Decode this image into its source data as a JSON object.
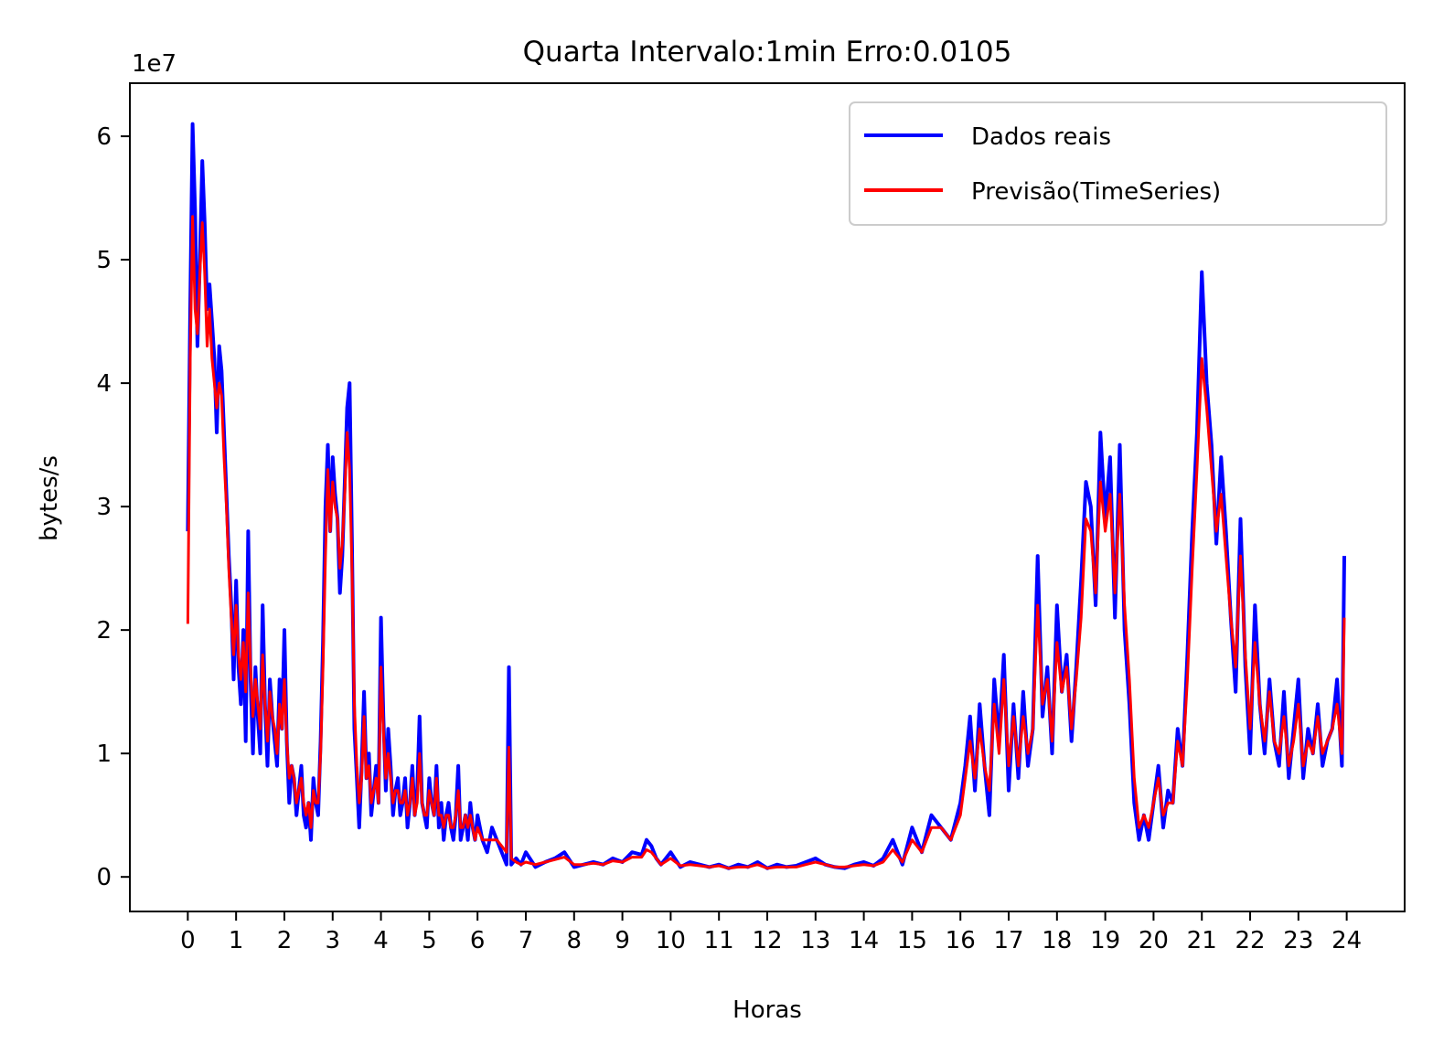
{
  "chart_data": {
    "type": "line",
    "title": "Quarta Intervalo:1min Erro:0.0105",
    "xlabel": "Horas",
    "ylabel": "bytes/s",
    "y_offset_label": "1e7",
    "y_multiplier": 10000000,
    "xlim": [
      -1.2,
      25.2
    ],
    "ylim": [
      -0.28,
      6.43
    ],
    "x_ticks": [
      0,
      1,
      2,
      3,
      4,
      5,
      6,
      7,
      8,
      9,
      10,
      11,
      12,
      13,
      14,
      15,
      16,
      17,
      18,
      19,
      20,
      21,
      22,
      23,
      24
    ],
    "x_tick_labels": [
      "0",
      "1",
      "2",
      "3",
      "4",
      "5",
      "6",
      "7",
      "8",
      "9",
      "10",
      "11",
      "12",
      "13",
      "14",
      "15",
      "16",
      "17",
      "18",
      "19",
      "20",
      "21",
      "22",
      "23",
      "24"
    ],
    "y_ticks": [
      0,
      1,
      2,
      3,
      4,
      5,
      6
    ],
    "y_tick_labels": [
      "0",
      "1",
      "2",
      "3",
      "4",
      "5",
      "6"
    ],
    "grid": false,
    "legend_position": "top-right",
    "series": [
      {
        "name": "Dados reais",
        "color": "#0000ff",
        "x": [
          0,
          0.05,
          0.1,
          0.15,
          0.2,
          0.25,
          0.3,
          0.35,
          0.4,
          0.45,
          0.5,
          0.55,
          0.6,
          0.65,
          0.7,
          0.75,
          0.8,
          0.85,
          0.9,
          0.95,
          1.0,
          1.05,
          1.1,
          1.15,
          1.2,
          1.25,
          1.3,
          1.35,
          1.4,
          1.45,
          1.5,
          1.55,
          1.6,
          1.65,
          1.7,
          1.75,
          1.8,
          1.85,
          1.9,
          1.95,
          2.0,
          2.05,
          2.1,
          2.15,
          2.2,
          2.25,
          2.3,
          2.35,
          2.4,
          2.45,
          2.5,
          2.55,
          2.6,
          2.65,
          2.7,
          2.75,
          2.8,
          2.85,
          2.9,
          2.95,
          3.0,
          3.05,
          3.1,
          3.15,
          3.2,
          3.25,
          3.3,
          3.35,
          3.4,
          3.45,
          3.5,
          3.55,
          3.6,
          3.65,
          3.7,
          3.75,
          3.8,
          3.85,
          3.9,
          3.95,
          4.0,
          4.05,
          4.1,
          4.15,
          4.2,
          4.25,
          4.3,
          4.35,
          4.4,
          4.45,
          4.5,
          4.55,
          4.6,
          4.65,
          4.7,
          4.75,
          4.8,
          4.85,
          4.9,
          4.95,
          5.0,
          5.05,
          5.1,
          5.15,
          5.2,
          5.25,
          5.3,
          5.35,
          5.4,
          5.45,
          5.5,
          5.55,
          5.6,
          5.65,
          5.7,
          5.75,
          5.8,
          5.85,
          5.9,
          5.95,
          6.0,
          6.1,
          6.2,
          6.3,
          6.4,
          6.5,
          6.6,
          6.65,
          6.7,
          6.8,
          6.9,
          7.0,
          7.2,
          7.4,
          7.6,
          7.8,
          8.0,
          8.2,
          8.4,
          8.6,
          8.8,
          9.0,
          9.2,
          9.4,
          9.5,
          9.6,
          9.7,
          9.8,
          10.0,
          10.2,
          10.4,
          10.6,
          10.8,
          11.0,
          11.2,
          11.4,
          11.6,
          11.8,
          12.0,
          12.2,
          12.4,
          12.6,
          12.8,
          13.0,
          13.2,
          13.4,
          13.6,
          13.8,
          14.0,
          14.2,
          14.4,
          14.6,
          14.8,
          15.0,
          15.2,
          15.4,
          15.6,
          15.8,
          16.0,
          16.1,
          16.2,
          16.3,
          16.4,
          16.5,
          16.6,
          16.7,
          16.8,
          16.9,
          17.0,
          17.1,
          17.2,
          17.3,
          17.4,
          17.5,
          17.6,
          17.7,
          17.8,
          17.9,
          18.0,
          18.1,
          18.2,
          18.3,
          18.4,
          18.5,
          18.6,
          18.7,
          18.8,
          18.9,
          19.0,
          19.1,
          19.2,
          19.3,
          19.4,
          19.5,
          19.6,
          19.7,
          19.8,
          19.9,
          20.0,
          20.1,
          20.2,
          20.3,
          20.4,
          20.5,
          20.6,
          20.7,
          20.8,
          20.9,
          21.0,
          21.1,
          21.2,
          21.3,
          21.4,
          21.5,
          21.6,
          21.7,
          21.8,
          21.9,
          22.0,
          22.1,
          22.2,
          22.3,
          22.4,
          22.5,
          22.6,
          22.7,
          22.8,
          22.9,
          23.0,
          23.1,
          23.2,
          23.3,
          23.4,
          23.5,
          23.6,
          23.7,
          23.8,
          23.9,
          23.95
        ],
        "y": [
          2.8,
          4.6,
          6.1,
          5.4,
          4.3,
          5.0,
          5.8,
          5.3,
          4.6,
          4.8,
          4.5,
          4.2,
          3.6,
          4.3,
          4.1,
          3.6,
          3.1,
          2.6,
          2.2,
          1.6,
          2.4,
          1.7,
          1.4,
          2.0,
          1.1,
          2.8,
          1.6,
          1.0,
          1.7,
          1.3,
          1.0,
          2.2,
          1.4,
          0.9,
          1.6,
          1.3,
          1.1,
          0.9,
          1.6,
          1.2,
          2.0,
          1.1,
          0.6,
          0.9,
          0.8,
          0.5,
          0.7,
          0.9,
          0.5,
          0.4,
          0.6,
          0.3,
          0.8,
          0.6,
          0.5,
          1.1,
          1.9,
          3.0,
          3.5,
          2.8,
          3.4,
          3.1,
          2.9,
          2.3,
          2.6,
          3.2,
          3.8,
          4.0,
          2.7,
          1.2,
          0.8,
          0.4,
          0.9,
          1.5,
          0.8,
          1.0,
          0.5,
          0.7,
          0.9,
          0.6,
          2.1,
          1.3,
          0.7,
          1.2,
          0.9,
          0.5,
          0.7,
          0.8,
          0.5,
          0.6,
          0.8,
          0.4,
          0.6,
          0.9,
          0.5,
          0.7,
          1.3,
          0.6,
          0.5,
          0.4,
          0.8,
          0.6,
          0.5,
          0.9,
          0.4,
          0.6,
          0.3,
          0.5,
          0.6,
          0.4,
          0.3,
          0.5,
          0.9,
          0.3,
          0.4,
          0.5,
          0.3,
          0.6,
          0.4,
          0.3,
          0.5,
          0.3,
          0.2,
          0.4,
          0.3,
          0.2,
          0.1,
          1.7,
          0.1,
          0.15,
          0.1,
          0.2,
          0.08,
          0.12,
          0.15,
          0.2,
          0.08,
          0.1,
          0.12,
          0.1,
          0.15,
          0.12,
          0.2,
          0.18,
          0.3,
          0.25,
          0.15,
          0.1,
          0.2,
          0.08,
          0.12,
          0.1,
          0.08,
          0.1,
          0.07,
          0.1,
          0.08,
          0.12,
          0.07,
          0.1,
          0.08,
          0.09,
          0.12,
          0.15,
          0.1,
          0.08,
          0.07,
          0.1,
          0.12,
          0.09,
          0.15,
          0.3,
          0.1,
          0.4,
          0.2,
          0.5,
          0.4,
          0.3,
          0.6,
          0.9,
          1.3,
          0.7,
          1.4,
          0.9,
          0.5,
          1.6,
          1.1,
          1.8,
          0.7,
          1.4,
          0.8,
          1.5,
          0.9,
          1.2,
          2.6,
          1.3,
          1.7,
          1.0,
          2.2,
          1.5,
          1.8,
          1.1,
          1.7,
          2.4,
          3.2,
          3.0,
          2.2,
          3.6,
          2.9,
          3.4,
          2.1,
          3.5,
          2.0,
          1.4,
          0.6,
          0.3,
          0.5,
          0.3,
          0.6,
          0.9,
          0.4,
          0.7,
          0.6,
          1.2,
          0.9,
          1.8,
          2.8,
          3.6,
          4.9,
          4.0,
          3.5,
          2.7,
          3.4,
          2.8,
          2.1,
          1.5,
          2.9,
          1.7,
          1.0,
          2.2,
          1.4,
          1.0,
          1.6,
          1.1,
          0.9,
          1.5,
          0.8,
          1.2,
          1.6,
          0.8,
          1.2,
          1.0,
          1.4,
          0.9,
          1.1,
          1.2,
          1.6,
          0.9,
          2.6
        ]
      },
      {
        "name": "Previsão(TimeSeries)",
        "color": "#ff0000",
        "x": [
          0,
          0.05,
          0.1,
          0.15,
          0.2,
          0.25,
          0.3,
          0.35,
          0.4,
          0.45,
          0.5,
          0.55,
          0.6,
          0.65,
          0.7,
          0.75,
          0.8,
          0.85,
          0.9,
          0.95,
          1.0,
          1.05,
          1.1,
          1.15,
          1.2,
          1.25,
          1.3,
          1.35,
          1.4,
          1.45,
          1.5,
          1.55,
          1.6,
          1.65,
          1.7,
          1.75,
          1.8,
          1.85,
          1.9,
          1.95,
          2.0,
          2.05,
          2.1,
          2.15,
          2.2,
          2.25,
          2.3,
          2.35,
          2.4,
          2.45,
          2.5,
          2.55,
          2.6,
          2.65,
          2.7,
          2.75,
          2.8,
          2.85,
          2.9,
          2.95,
          3.0,
          3.05,
          3.1,
          3.15,
          3.2,
          3.25,
          3.3,
          3.35,
          3.4,
          3.45,
          3.5,
          3.55,
          3.6,
          3.65,
          3.7,
          3.75,
          3.8,
          3.85,
          3.9,
          3.95,
          4.0,
          4.05,
          4.1,
          4.15,
          4.2,
          4.25,
          4.3,
          4.35,
          4.4,
          4.45,
          4.5,
          4.55,
          4.6,
          4.65,
          4.7,
          4.75,
          4.8,
          4.85,
          4.9,
          4.95,
          5.0,
          5.05,
          5.1,
          5.15,
          5.2,
          5.25,
          5.3,
          5.35,
          5.4,
          5.45,
          5.5,
          5.55,
          5.6,
          5.65,
          5.7,
          5.75,
          5.8,
          5.85,
          5.9,
          5.95,
          6.0,
          6.1,
          6.2,
          6.3,
          6.4,
          6.5,
          6.6,
          6.65,
          6.7,
          6.8,
          6.9,
          7.0,
          7.2,
          7.4,
          7.6,
          7.8,
          8.0,
          8.2,
          8.4,
          8.6,
          8.8,
          9.0,
          9.2,
          9.4,
          9.5,
          9.6,
          9.7,
          9.8,
          10.0,
          10.2,
          10.4,
          10.6,
          10.8,
          11.0,
          11.2,
          11.4,
          11.6,
          11.8,
          12.0,
          12.2,
          12.4,
          12.6,
          12.8,
          13.0,
          13.2,
          13.4,
          13.6,
          13.8,
          14.0,
          14.2,
          14.4,
          14.6,
          14.8,
          15.0,
          15.2,
          15.4,
          15.6,
          15.8,
          16.0,
          16.1,
          16.2,
          16.3,
          16.4,
          16.5,
          16.6,
          16.7,
          16.8,
          16.9,
          17.0,
          17.1,
          17.2,
          17.3,
          17.4,
          17.5,
          17.6,
          17.7,
          17.8,
          17.9,
          18.0,
          18.1,
          18.2,
          18.3,
          18.4,
          18.5,
          18.6,
          18.7,
          18.8,
          18.9,
          19.0,
          19.1,
          19.2,
          19.3,
          19.4,
          19.5,
          19.6,
          19.7,
          19.8,
          19.9,
          20.0,
          20.1,
          20.2,
          20.3,
          20.4,
          20.5,
          20.6,
          20.7,
          20.8,
          20.9,
          21.0,
          21.1,
          21.2,
          21.3,
          21.4,
          21.5,
          21.6,
          21.7,
          21.8,
          21.9,
          22.0,
          22.1,
          22.2,
          22.3,
          22.4,
          22.5,
          22.6,
          22.7,
          22.8,
          22.9,
          23.0,
          23.1,
          23.2,
          23.3,
          23.4,
          23.5,
          23.6,
          23.7,
          23.8,
          23.9,
          23.95
        ],
        "y": [
          2.05,
          4.2,
          5.35,
          4.6,
          4.4,
          4.9,
          5.3,
          4.9,
          4.3,
          4.6,
          4.2,
          4.0,
          3.8,
          4.0,
          3.9,
          3.4,
          3.0,
          2.5,
          2.1,
          1.8,
          2.2,
          1.8,
          1.6,
          1.9,
          1.5,
          2.3,
          1.7,
          1.3,
          1.6,
          1.4,
          1.2,
          1.8,
          1.4,
          1.1,
          1.5,
          1.3,
          1.2,
          1.0,
          1.4,
          1.2,
          1.6,
          1.1,
          0.8,
          0.9,
          0.8,
          0.6,
          0.7,
          0.8,
          0.6,
          0.5,
          0.6,
          0.4,
          0.7,
          0.6,
          0.6,
          1.0,
          1.7,
          2.6,
          3.3,
          2.8,
          3.2,
          3.0,
          2.9,
          2.5,
          2.7,
          3.1,
          3.6,
          3.3,
          2.5,
          1.4,
          0.9,
          0.6,
          0.8,
          1.3,
          0.8,
          0.9,
          0.6,
          0.7,
          0.8,
          0.6,
          1.7,
          1.2,
          0.8,
          1.0,
          0.8,
          0.6,
          0.7,
          0.7,
          0.6,
          0.6,
          0.7,
          0.5,
          0.6,
          0.8,
          0.5,
          0.6,
          1.0,
          0.6,
          0.5,
          0.5,
          0.7,
          0.6,
          0.5,
          0.8,
          0.5,
          0.5,
          0.4,
          0.5,
          0.5,
          0.4,
          0.4,
          0.5,
          0.7,
          0.4,
          0.4,
          0.5,
          0.4,
          0.5,
          0.4,
          0.3,
          0.4,
          0.3,
          0.3,
          0.3,
          0.3,
          0.25,
          0.2,
          1.05,
          0.15,
          0.12,
          0.1,
          0.12,
          0.1,
          0.12,
          0.14,
          0.16,
          0.1,
          0.1,
          0.11,
          0.1,
          0.13,
          0.12,
          0.16,
          0.16,
          0.22,
          0.2,
          0.15,
          0.1,
          0.15,
          0.09,
          0.1,
          0.09,
          0.08,
          0.09,
          0.07,
          0.08,
          0.08,
          0.1,
          0.07,
          0.08,
          0.08,
          0.08,
          0.1,
          0.12,
          0.1,
          0.08,
          0.08,
          0.09,
          0.1,
          0.09,
          0.12,
          0.22,
          0.12,
          0.3,
          0.2,
          0.4,
          0.4,
          0.3,
          0.5,
          0.8,
          1.1,
          0.8,
          1.2,
          0.9,
          0.7,
          1.4,
          1.0,
          1.6,
          0.9,
          1.3,
          0.9,
          1.3,
          1.0,
          1.2,
          2.2,
          1.4,
          1.6,
          1.1,
          1.9,
          1.5,
          1.7,
          1.2,
          1.6,
          2.1,
          2.9,
          2.8,
          2.3,
          3.2,
          2.8,
          3.1,
          2.3,
          3.1,
          2.2,
          1.6,
          0.8,
          0.4,
          0.5,
          0.4,
          0.6,
          0.8,
          0.5,
          0.6,
          0.6,
          1.1,
          0.9,
          1.6,
          2.5,
          3.3,
          4.2,
          3.8,
          3.3,
          2.8,
          3.1,
          2.6,
          2.1,
          1.7,
          2.6,
          1.8,
          1.2,
          1.9,
          1.4,
          1.1,
          1.5,
          1.1,
          1.0,
          1.3,
          0.9,
          1.1,
          1.4,
          0.9,
          1.1,
          1.0,
          1.3,
          1.0,
          1.1,
          1.2,
          1.4,
          1.0,
          2.1
        ]
      }
    ]
  }
}
